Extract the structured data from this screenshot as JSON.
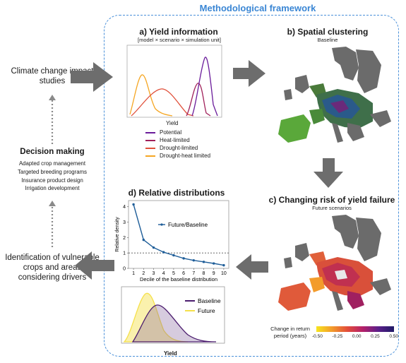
{
  "framework_title": "Methodological framework",
  "left": {
    "climate_studies": "Climate change impact studies",
    "decision_title": "Decision making",
    "decision_items": [
      "Adapted crop management",
      "Targeted breeding programs",
      "Insurance product design",
      "Irrigation development"
    ],
    "identification": "Identification of vulnerable crops and areas considering drivers"
  },
  "panel_a": {
    "title": "a) Yield information",
    "subtitle": "[model × scenario × simulation unit]",
    "xlabel": "Yield",
    "legend": [
      {
        "label": "Potential",
        "color": "#6a1b9a"
      },
      {
        "label": "Heat-limited",
        "color": "#a0205a"
      },
      {
        "label": "Drought-limited",
        "color": "#e0503a"
      },
      {
        "label": "Drought-heat limited",
        "color": "#f5a623"
      }
    ]
  },
  "panel_b": {
    "title": "b) Spatial clustering",
    "subtitle": "Baseline"
  },
  "panel_c": {
    "title": "c) Changing risk of yield failure",
    "subtitle": "Future scenarios",
    "colorbar_label": "Change in return period (years)",
    "colorbar_ticks": [
      "-0.50",
      "-0.25",
      "0.00",
      "0.25",
      "0.50"
    ],
    "colorbar_colors": [
      "#f7e51e",
      "#f39c2b",
      "#e24d3a",
      "#b3206a",
      "#5b1f8a",
      "#1f1a66"
    ]
  },
  "panel_d": {
    "title": "d) Relative distributions",
    "ylabel": "Relative density",
    "xlabel": "Decile of the baseline distribution",
    "legend": "Future/Baseline",
    "density_legend": [
      {
        "label": "Baseline",
        "color": "#4b1c6e"
      },
      {
        "label": "Future",
        "color": "#f5e04a"
      }
    ],
    "density_xlabel": "Yield"
  },
  "chart_data": {
    "type": "line",
    "x": [
      1,
      2,
      3,
      4,
      5,
      6,
      7,
      8,
      9,
      10
    ],
    "series": [
      {
        "name": "Future/Baseline",
        "values": [
          4.15,
          1.85,
          1.35,
          1.05,
          0.85,
          0.65,
          0.52,
          0.42,
          0.32,
          0.2
        ]
      }
    ],
    "xlabel": "Decile of the baseline distribution",
    "ylabel": "Relative density",
    "xlim": [
      0.5,
      10.5
    ],
    "ylim": [
      0,
      4.4
    ],
    "xticks": [
      1,
      2,
      3,
      4,
      5,
      6,
      7,
      8,
      9,
      10
    ],
    "yticks": [
      0,
      1,
      2,
      3,
      4
    ],
    "reference_line": 1,
    "color": "#1f5e99"
  }
}
